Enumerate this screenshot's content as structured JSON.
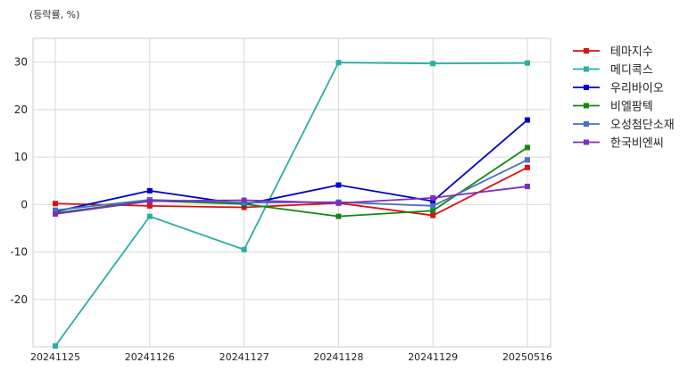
{
  "chart_data": {
    "type": "line",
    "unit_label": "(등락률, %)",
    "title": "",
    "xlabel": "",
    "ylabel": "",
    "categories": [
      "20241125",
      "20241126",
      "20241127",
      "20241128",
      "20241129",
      "20250516"
    ],
    "ylim": [
      -30,
      35
    ],
    "yticks": [
      -20,
      -10,
      0,
      10,
      20,
      30
    ],
    "grid": true,
    "legend_position": "right-top",
    "series": [
      {
        "name": "테마지수",
        "color": "#dd1111",
        "values": [
          0.2,
          -0.3,
          -0.6,
          0.3,
          -2.3,
          7.8
        ]
      },
      {
        "name": "메디콕스",
        "color": "#2aaea6",
        "values": [
          -29.8,
          -2.5,
          -9.5,
          29.9,
          29.7,
          29.8
        ]
      },
      {
        "name": "우리바이오",
        "color": "#0000cc",
        "values": [
          -1.5,
          2.9,
          0.0,
          4.1,
          0.7,
          17.8
        ]
      },
      {
        "name": "비엘팜텍",
        "color": "#118811",
        "values": [
          -1.8,
          0.8,
          0.1,
          -2.5,
          -1.3,
          12.0
        ]
      },
      {
        "name": "오성첨단소재",
        "color": "#4472c4",
        "values": [
          -1.2,
          1.0,
          0.4,
          0.5,
          -0.3,
          9.4
        ]
      },
      {
        "name": "한국비엔씨",
        "color": "#7b2fbe",
        "values": [
          -2.0,
          0.7,
          0.9,
          0.3,
          1.4,
          3.8
        ]
      }
    ]
  }
}
